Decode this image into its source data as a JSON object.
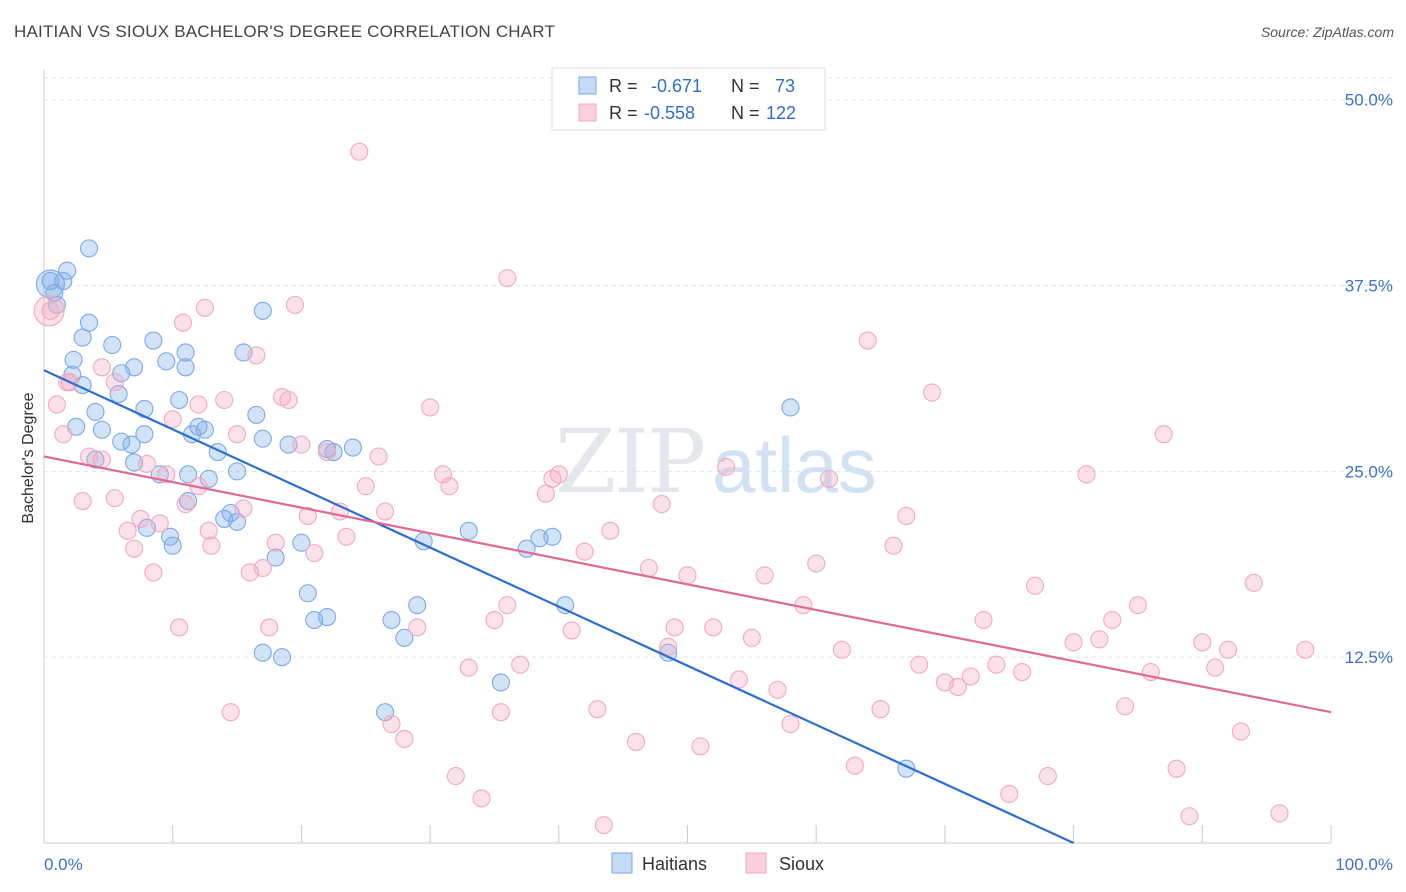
{
  "chart_data": {
    "type": "scatter",
    "title": "HAITIAN VS SIOUX BACHELOR'S DEGREE CORRELATION CHART",
    "source": "Source: ZipAtlas.com",
    "ylabel": "Bachelor's Degree",
    "xlabel": "",
    "xlim": [
      0,
      100
    ],
    "ylim": [
      0,
      52
    ],
    "x_tick_labels": [
      {
        "value": 0,
        "label": "0.0%"
      },
      {
        "value": 100,
        "label": "100.0%"
      }
    ],
    "y_tick_labels": [
      {
        "value": 12.5,
        "label": "12.5%"
      },
      {
        "value": 25,
        "label": "25.0%"
      },
      {
        "value": 37.5,
        "label": "37.5%"
      },
      {
        "value": 50,
        "label": "50.0%"
      }
    ],
    "grid": true,
    "legend_position": "bottom-center",
    "stats_box": [
      {
        "series": "Haitians",
        "r_label": "R =",
        "r_value": "-0.671",
        "n_label": "N =",
        "n_value": "73"
      },
      {
        "series": "Sioux",
        "r_label": "R =",
        "r_value": "-0.558",
        "n_label": "N =",
        "n_value": "122"
      }
    ],
    "watermark": "ZIPatlas",
    "series": [
      {
        "name": "Haitians",
        "color": "#7aaae8",
        "line_color": "#2d6fd0",
        "trend": {
          "x0": 0,
          "y0": 31.8,
          "x1": 80,
          "y1": 0
        },
        "points": [
          [
            0.5,
            37.8
          ],
          [
            0.8,
            37.0
          ],
          [
            1.0,
            36.2
          ],
          [
            1.5,
            37.8
          ],
          [
            1.8,
            38.5
          ],
          [
            3.5,
            40.0
          ],
          [
            2.2,
            31.5
          ],
          [
            2.3,
            32.5
          ],
          [
            3.0,
            34.0
          ],
          [
            3.5,
            35.0
          ],
          [
            2.5,
            28.0
          ],
          [
            4.0,
            25.8
          ],
          [
            3.0,
            30.8
          ],
          [
            4.0,
            29.0
          ],
          [
            4.5,
            27.8
          ],
          [
            5.3,
            33.5
          ],
          [
            6.0,
            31.6
          ],
          [
            5.8,
            30.2
          ],
          [
            7.0,
            32.0
          ],
          [
            7.8,
            29.2
          ],
          [
            7.8,
            27.5
          ],
          [
            8.5,
            33.8
          ],
          [
            9.5,
            32.4
          ],
          [
            10.5,
            29.8
          ],
          [
            11.0,
            32.0
          ],
          [
            12.0,
            28.0
          ],
          [
            11.2,
            23.0
          ],
          [
            12.5,
            27.8
          ],
          [
            12.8,
            24.5
          ],
          [
            13.5,
            26.3
          ],
          [
            11.5,
            27.5
          ],
          [
            11.0,
            33.0
          ],
          [
            15.0,
            25.0
          ],
          [
            14.0,
            21.8
          ],
          [
            15.0,
            21.6
          ],
          [
            15.5,
            33.0
          ],
          [
            17.0,
            35.8
          ],
          [
            16.5,
            28.8
          ],
          [
            17.0,
            27.2
          ],
          [
            18.0,
            19.2
          ],
          [
            19.0,
            26.8
          ],
          [
            20.0,
            20.2
          ],
          [
            20.5,
            16.8
          ],
          [
            21.0,
            15.0
          ],
          [
            22.0,
            15.2
          ],
          [
            22.0,
            26.5
          ],
          [
            22.5,
            26.3
          ],
          [
            24.0,
            26.6
          ],
          [
            27.0,
            15.0
          ],
          [
            28.0,
            13.8
          ],
          [
            29.0,
            16.0
          ],
          [
            29.5,
            20.3
          ],
          [
            33.0,
            21.0
          ],
          [
            35.5,
            10.8
          ],
          [
            37.5,
            19.8
          ],
          [
            38.5,
            20.5
          ],
          [
            39.5,
            20.6
          ],
          [
            40.5,
            16.0
          ],
          [
            48.5,
            12.8
          ],
          [
            58.0,
            29.3
          ],
          [
            67.0,
            5.0
          ],
          [
            17.0,
            12.8
          ],
          [
            18.5,
            12.5
          ],
          [
            26.5,
            8.8
          ],
          [
            9.0,
            24.8
          ],
          [
            10.0,
            20.0
          ],
          [
            8.0,
            21.2
          ],
          [
            9.8,
            20.6
          ],
          [
            11.2,
            24.8
          ],
          [
            6.8,
            26.8
          ],
          [
            14.5,
            22.2
          ],
          [
            6.0,
            27.0
          ],
          [
            7.0,
            25.6
          ]
        ]
      },
      {
        "name": "Sioux",
        "color": "#f4a8bf",
        "line_color": "#e06a94",
        "trend": {
          "x0": 0,
          "y0": 26.0,
          "x1": 100,
          "y1": 8.8
        },
        "points": [
          [
            0.5,
            35.8
          ],
          [
            1.0,
            29.5
          ],
          [
            1.5,
            27.5
          ],
          [
            2.0,
            31.0
          ],
          [
            3.0,
            23.0
          ],
          [
            3.5,
            26.0
          ],
          [
            4.5,
            32.0
          ],
          [
            5.5,
            31.0
          ],
          [
            5.5,
            23.2
          ],
          [
            6.5,
            21.0
          ],
          [
            7.0,
            19.8
          ],
          [
            7.5,
            21.8
          ],
          [
            8.0,
            25.5
          ],
          [
            8.5,
            18.2
          ],
          [
            9.0,
            21.5
          ],
          [
            9.5,
            24.8
          ],
          [
            10.0,
            28.5
          ],
          [
            10.5,
            14.5
          ],
          [
            10.8,
            35.0
          ],
          [
            11.0,
            22.8
          ],
          [
            12.0,
            29.5
          ],
          [
            12.5,
            36.0
          ],
          [
            12.8,
            21.0
          ],
          [
            13.0,
            20.0
          ],
          [
            14.0,
            29.8
          ],
          [
            14.5,
            8.8
          ],
          [
            15.0,
            27.5
          ],
          [
            15.5,
            22.5
          ],
          [
            16.0,
            18.2
          ],
          [
            16.5,
            32.8
          ],
          [
            17.0,
            18.5
          ],
          [
            17.5,
            14.5
          ],
          [
            18.0,
            20.2
          ],
          [
            18.5,
            30.0
          ],
          [
            19.0,
            29.8
          ],
          [
            19.5,
            36.2
          ],
          [
            20.0,
            26.8
          ],
          [
            20.5,
            22.0
          ],
          [
            21.0,
            19.5
          ],
          [
            22.0,
            26.3
          ],
          [
            23.0,
            22.3
          ],
          [
            23.5,
            20.6
          ],
          [
            24.5,
            46.5
          ],
          [
            25.0,
            24.0
          ],
          [
            26.0,
            26.0
          ],
          [
            26.5,
            22.3
          ],
          [
            27.0,
            8.0
          ],
          [
            28.0,
            7.0
          ],
          [
            29.0,
            14.5
          ],
          [
            30.0,
            29.3
          ],
          [
            31.0,
            24.8
          ],
          [
            31.5,
            24.0
          ],
          [
            32.0,
            4.5
          ],
          [
            33.0,
            11.8
          ],
          [
            34.0,
            3.0
          ],
          [
            35.0,
            15.0
          ],
          [
            35.5,
            8.8
          ],
          [
            36.0,
            16.0
          ],
          [
            37.0,
            12.0
          ],
          [
            39.0,
            23.5
          ],
          [
            40.0,
            24.8
          ],
          [
            41.0,
            14.3
          ],
          [
            42.0,
            19.6
          ],
          [
            43.0,
            9.0
          ],
          [
            43.5,
            1.2
          ],
          [
            44.0,
            21.0
          ],
          [
            46.0,
            6.8
          ],
          [
            47.0,
            18.5
          ],
          [
            48.0,
            22.8
          ],
          [
            48.5,
            13.2
          ],
          [
            49.0,
            14.5
          ],
          [
            50.0,
            18.0
          ],
          [
            51.0,
            6.5
          ],
          [
            52.0,
            14.5
          ],
          [
            53.0,
            25.3
          ],
          [
            54.0,
            11.0
          ],
          [
            55.0,
            13.8
          ],
          [
            56.0,
            18.0
          ],
          [
            57.0,
            10.3
          ],
          [
            58.0,
            8.0
          ],
          [
            59.0,
            16.0
          ],
          [
            60.0,
            18.8
          ],
          [
            61.0,
            24.5
          ],
          [
            62.0,
            13.0
          ],
          [
            63.0,
            5.2
          ],
          [
            64.0,
            33.8
          ],
          [
            65.0,
            9.0
          ],
          [
            66.0,
            20.0
          ],
          [
            67.0,
            22.0
          ],
          [
            68.0,
            12.0
          ],
          [
            69.0,
            30.3
          ],
          [
            70.0,
            10.8
          ],
          [
            71.0,
            10.5
          ],
          [
            72.0,
            11.2
          ],
          [
            73.0,
            15.0
          ],
          [
            74.0,
            12.0
          ],
          [
            75.0,
            3.3
          ],
          [
            76.0,
            11.5
          ],
          [
            77.0,
            17.3
          ],
          [
            78.0,
            4.5
          ],
          [
            80.0,
            13.5
          ],
          [
            81.0,
            24.8
          ],
          [
            82.0,
            13.7
          ],
          [
            83.0,
            15.0
          ],
          [
            84.0,
            9.2
          ],
          [
            85.0,
            16.0
          ],
          [
            86.0,
            11.5
          ],
          [
            87.0,
            27.5
          ],
          [
            88.0,
            5.0
          ],
          [
            89.0,
            1.8
          ],
          [
            90.0,
            13.5
          ],
          [
            91.0,
            11.8
          ],
          [
            92.0,
            13.0
          ],
          [
            93.0,
            7.5
          ],
          [
            94.0,
            17.5
          ],
          [
            96.0,
            2.0
          ],
          [
            98.0,
            13.0
          ],
          [
            36.0,
            38.0
          ],
          [
            39.5,
            24.5
          ],
          [
            1.8,
            31.0
          ],
          [
            4.5,
            25.8
          ],
          [
            12.0,
            24.0
          ]
        ]
      }
    ]
  }
}
